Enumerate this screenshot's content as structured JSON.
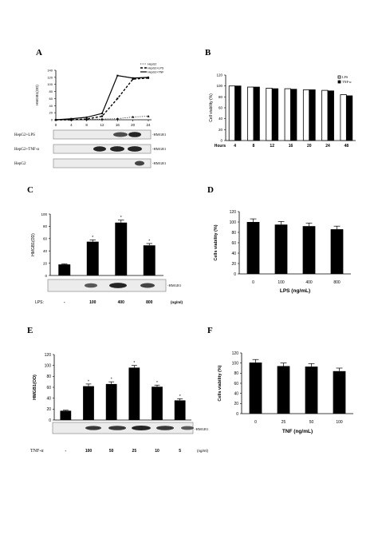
{
  "panels": {
    "A": {
      "letter": "A",
      "legend": [
        "HepG2",
        "HepG2+LPS",
        "HepG2+TNF"
      ],
      "ylabel": "HMGB1(OD)",
      "yticks": [
        "0",
        "20",
        "40",
        "60",
        "80",
        "100",
        "120",
        "140"
      ],
      "xticks": [
        "0",
        "4",
        "8",
        "12",
        "16",
        "20",
        "24"
      ],
      "blots": [
        "HepG2+LPS",
        "HepG2+TNF-α",
        "HepG2"
      ],
      "blot_label": "-HMGB1"
    },
    "B": {
      "letter": "B",
      "legend": [
        "LPS",
        "TNF-α"
      ],
      "ylabel": "Cell viability (%)",
      "yticks": [
        "0",
        "20",
        "40",
        "60",
        "80",
        "100",
        "120"
      ],
      "xlabel": "Hours",
      "xticks": [
        "4",
        "8",
        "12",
        "16",
        "20",
        "24",
        "48"
      ]
    },
    "C": {
      "letter": "C",
      "ylabel": "HMGB1(OD)",
      "yticks": [
        "0",
        "20",
        "40",
        "60",
        "80",
        "100"
      ],
      "row_label": "LPS:",
      "xticks": [
        "-",
        "100",
        "400",
        "800"
      ],
      "unit": "(ng/ml)",
      "blot_label": "-HMGB1"
    },
    "D": {
      "letter": "D",
      "ylabel": "Cells viability (%)",
      "yticks": [
        "0",
        "20",
        "40",
        "60",
        "80",
        "100",
        "120"
      ],
      "xticks": [
        "0",
        "100",
        "400",
        "800"
      ],
      "xlabel": "LPS (ng/mL)"
    },
    "E": {
      "letter": "E",
      "ylabel": "HMGB1(OD)",
      "yticks": [
        "0",
        "20",
        "40",
        "60",
        "80",
        "100",
        "120"
      ],
      "row_label": "TNF-α",
      "xticks": [
        "-",
        "100",
        "50",
        "25",
        "10",
        "5"
      ],
      "unit": "(ng/ml)",
      "blot_label": "-HMGB1"
    },
    "F": {
      "letter": "F",
      "ylabel": "Cells viability (%)",
      "yticks": [
        "0",
        "20",
        "40",
        "60",
        "80",
        "100",
        "120"
      ],
      "xticks": [
        "0",
        "25",
        "50",
        "100"
      ],
      "xlabel": "TNF (ng/mL)"
    }
  },
  "chart_data": [
    {
      "panel": "A",
      "type": "line",
      "x": [
        0,
        4,
        8,
        12,
        16,
        20,
        24
      ],
      "series": [
        {
          "name": "HepG2",
          "values": [
            0,
            0,
            1,
            2,
            3,
            8,
            10
          ]
        },
        {
          "name": "HepG2+LPS",
          "values": [
            0,
            0,
            2,
            10,
            60,
            115,
            118
          ]
        },
        {
          "name": "HepG2+TNF",
          "values": [
            0,
            3,
            7,
            18,
            125,
            118,
            120
          ]
        }
      ],
      "ylim": [
        0,
        140
      ]
    },
    {
      "panel": "B",
      "type": "bar",
      "categories": [
        "4",
        "8",
        "12",
        "16",
        "20",
        "24",
        "48"
      ],
      "series": [
        {
          "name": "LPS",
          "values": [
            100,
            98,
            96,
            95,
            93,
            92,
            84
          ]
        },
        {
          "name": "TNF-α",
          "values": [
            100,
            98,
            95,
            94,
            93,
            91,
            82
          ]
        }
      ],
      "ylim": [
        0,
        120
      ]
    },
    {
      "panel": "C",
      "type": "bar",
      "categories": [
        "-",
        "100",
        "400",
        "800"
      ],
      "values": [
        18,
        55,
        86,
        49
      ],
      "errors": [
        1,
        3,
        4,
        3
      ],
      "ylim": [
        0,
        100
      ]
    },
    {
      "panel": "D",
      "type": "bar",
      "categories": [
        "0",
        "100",
        "400",
        "800"
      ],
      "values": [
        100,
        95,
        92,
        86
      ],
      "errors": [
        6,
        6,
        6,
        6
      ],
      "ylim": [
        0,
        120
      ]
    },
    {
      "panel": "E",
      "type": "bar",
      "categories": [
        "-",
        "100",
        "50",
        "25",
        "10",
        "5"
      ],
      "values": [
        17,
        62,
        66,
        96,
        61,
        36
      ],
      "errors": [
        1,
        4,
        4,
        4,
        3,
        3
      ],
      "ylim": [
        0,
        120
      ]
    },
    {
      "panel": "F",
      "type": "bar",
      "categories": [
        "0",
        "25",
        "50",
        "100"
      ],
      "values": [
        101,
        94,
        93,
        84
      ],
      "errors": [
        6,
        6,
        6,
        6
      ],
      "ylim": [
        0,
        120
      ]
    }
  ]
}
